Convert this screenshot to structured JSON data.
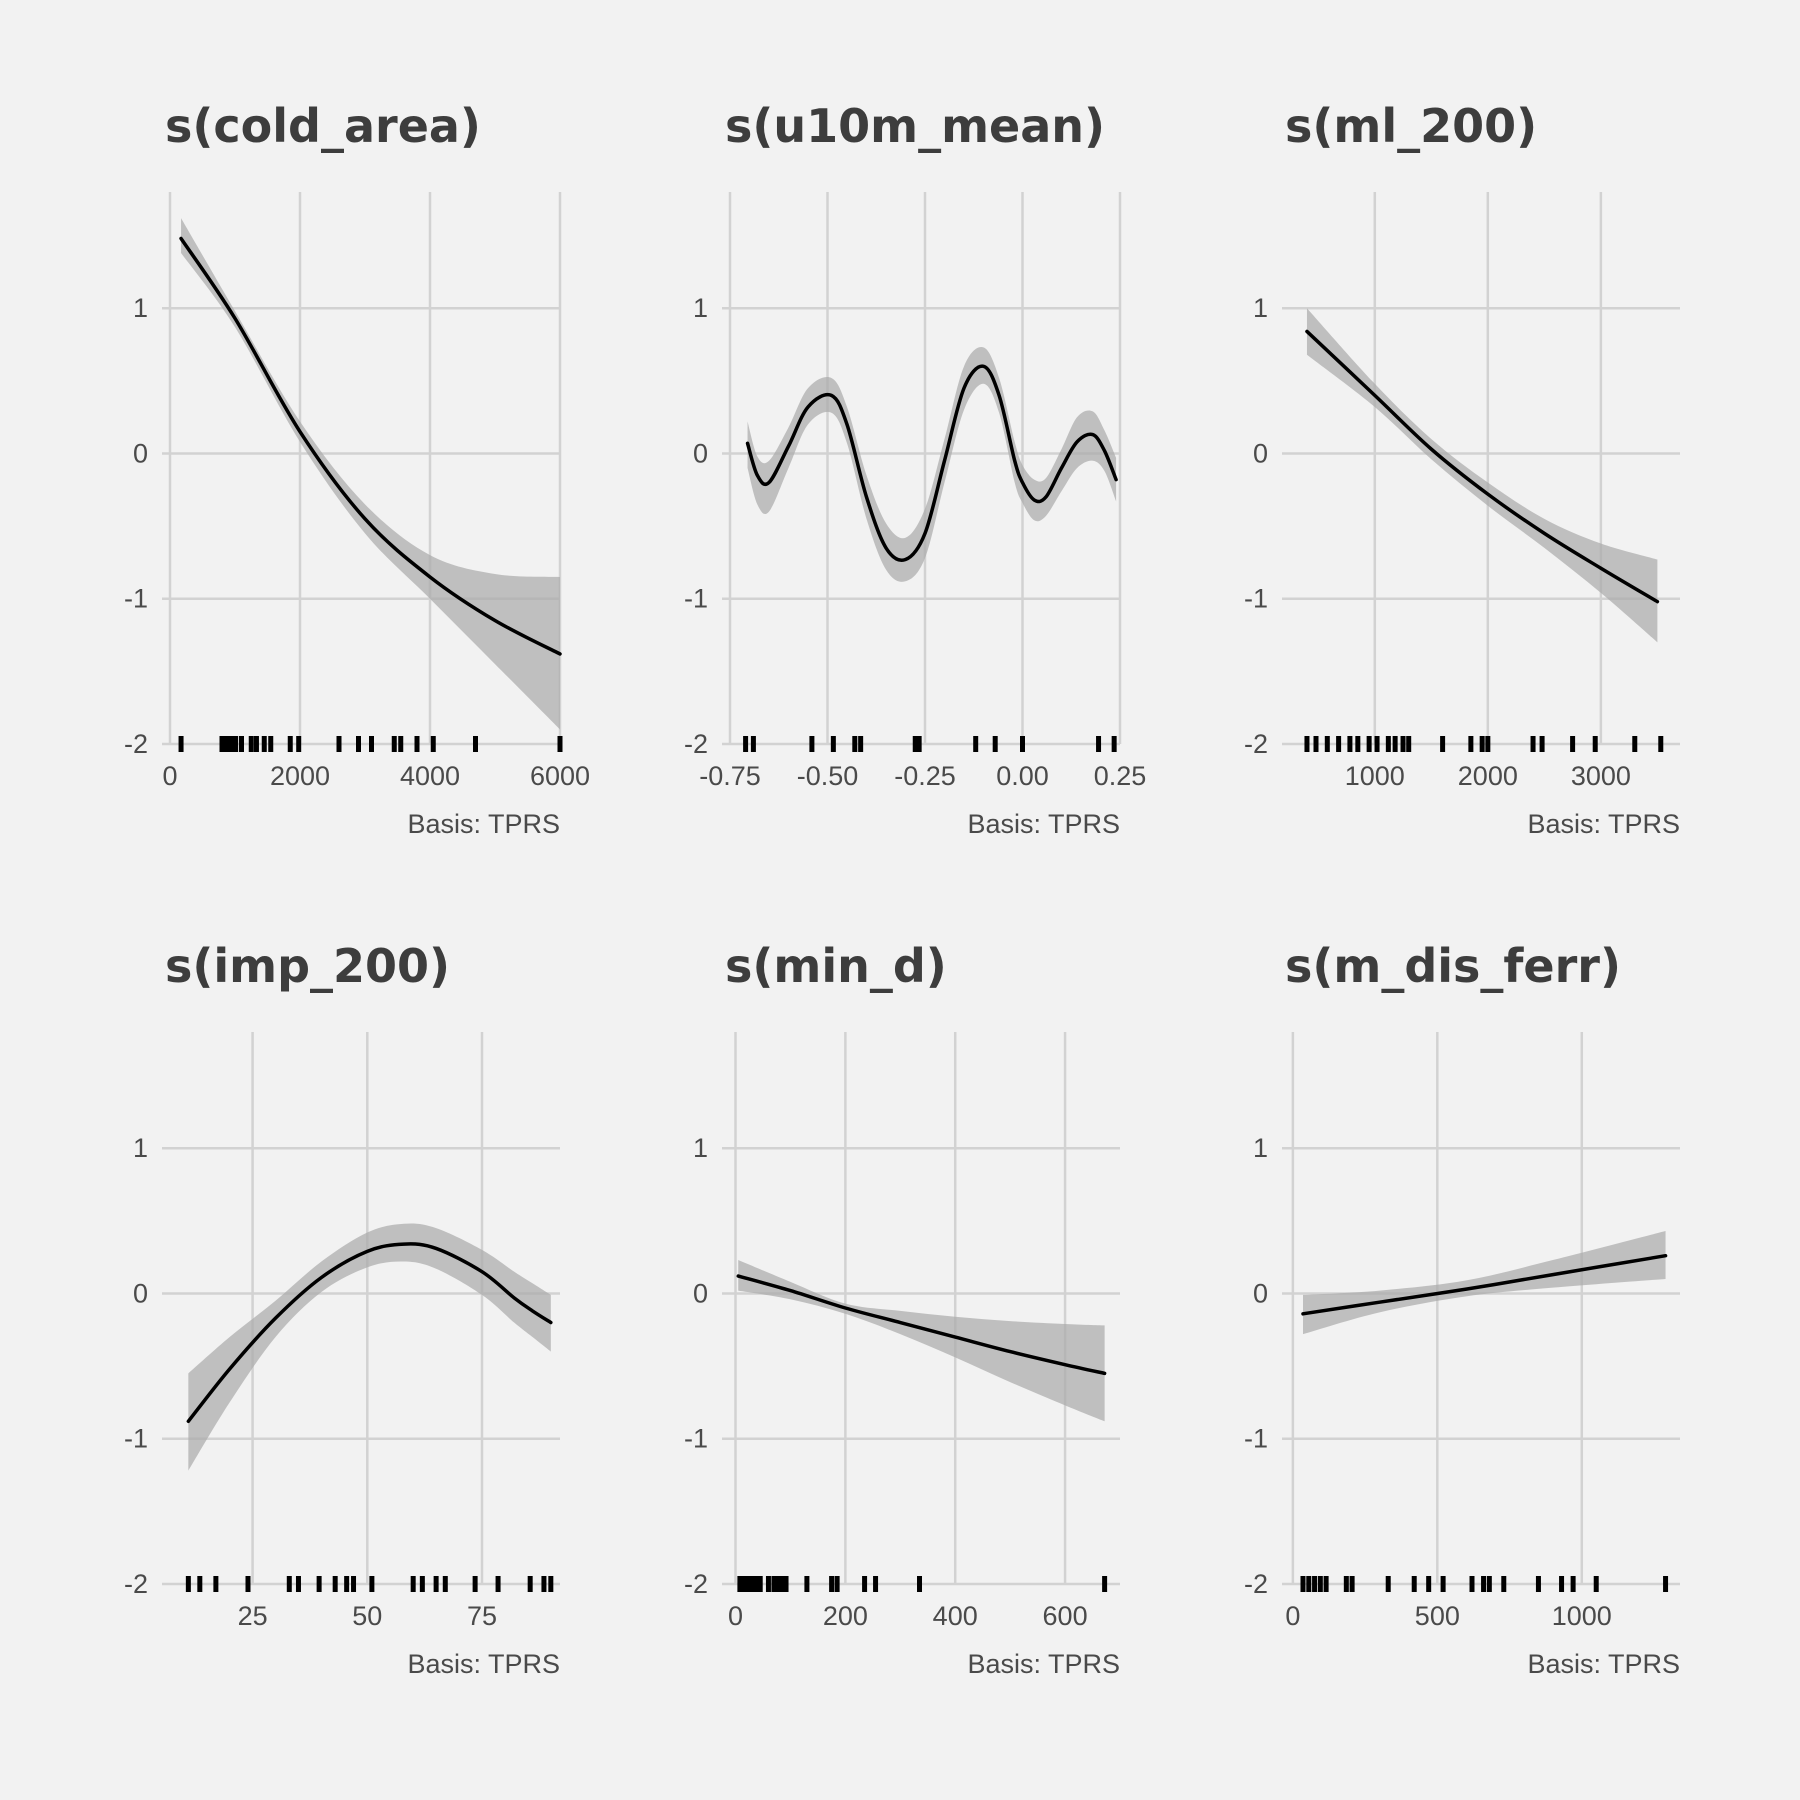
{
  "chart_data": [
    {
      "type": "line",
      "title": "s(cold_area)",
      "caption": "Basis: TPRS",
      "xlim": [
        0,
        6000
      ],
      "ylim": [
        -2,
        1.8
      ],
      "xticks": [
        0,
        2000,
        4000,
        6000
      ],
      "xtick_labels": [
        "0",
        "2000",
        "4000",
        "6000"
      ],
      "yticks": [
        -2,
        -1,
        0,
        1
      ],
      "ytick_labels": [
        "-2",
        "-1",
        "0",
        "1"
      ],
      "grid": true,
      "fit": {
        "x": [
          170,
          1000,
          2000,
          3000,
          4000,
          5000,
          6000
        ],
        "y": [
          1.48,
          0.93,
          0.15,
          -0.45,
          -0.85,
          -1.15,
          -1.38
        ]
      },
      "ci_upper": {
        "x": [
          170,
          1000,
          2000,
          3000,
          4000,
          5000,
          6000
        ],
        "y": [
          1.62,
          0.98,
          0.22,
          -0.35,
          -0.7,
          -0.83,
          -0.85
        ]
      },
      "ci_lower": {
        "x": [
          170,
          1000,
          2000,
          3000,
          4000,
          5000,
          6000
        ],
        "y": [
          1.38,
          0.87,
          0.08,
          -0.55,
          -1.0,
          -1.45,
          -1.9
        ]
      },
      "rug": [
        170,
        800,
        870,
        940,
        1010,
        1100,
        1250,
        1330,
        1450,
        1550,
        1850,
        1980,
        2600,
        2900,
        3100,
        3450,
        3550,
        3800,
        4050,
        4700,
        6000
      ]
    },
    {
      "type": "line",
      "title": "s(u10m_mean)",
      "caption": "Basis: TPRS",
      "xlim": [
        -0.75,
        0.25
      ],
      "ylim": [
        -2,
        1.8
      ],
      "xticks": [
        -0.75,
        -0.5,
        -0.25,
        0,
        0.25
      ],
      "xtick_labels": [
        "-0.75",
        "-0.50",
        "-0.25",
        "0.00",
        "0.25"
      ],
      "yticks": [
        -2,
        -1,
        0,
        1
      ],
      "ytick_labels": [
        "-2",
        "-1",
        "0",
        "1"
      ],
      "grid": true,
      "fit": {
        "x": [
          -0.705,
          -0.68,
          -0.65,
          -0.6,
          -0.55,
          -0.49,
          -0.45,
          -0.4,
          -0.35,
          -0.3,
          -0.25,
          -0.2,
          -0.15,
          -0.1,
          -0.06,
          -0.02,
          0.0,
          0.03,
          0.06,
          0.1,
          0.14,
          0.18,
          0.21,
          0.24
        ],
        "y": [
          0.07,
          -0.15,
          -0.2,
          0.05,
          0.32,
          0.4,
          0.2,
          -0.3,
          -0.65,
          -0.73,
          -0.55,
          -0.05,
          0.45,
          0.6,
          0.4,
          -0.05,
          -0.2,
          -0.32,
          -0.3,
          -0.1,
          0.08,
          0.13,
          0.02,
          -0.18
        ]
      },
      "ci_upper": {
        "x": [
          -0.705,
          -0.68,
          -0.65,
          -0.6,
          -0.55,
          -0.49,
          -0.45,
          -0.4,
          -0.35,
          -0.3,
          -0.25,
          -0.2,
          -0.15,
          -0.1,
          -0.06,
          -0.02,
          0.0,
          0.03,
          0.06,
          0.1,
          0.14,
          0.18,
          0.21,
          0.24
        ],
        "y": [
          0.22,
          -0.02,
          -0.05,
          0.18,
          0.45,
          0.52,
          0.32,
          -0.15,
          -0.48,
          -0.58,
          -0.38,
          0.1,
          0.6,
          0.73,
          0.52,
          0.08,
          -0.08,
          -0.18,
          -0.17,
          0.03,
          0.25,
          0.29,
          0.16,
          -0.03
        ]
      },
      "ci_lower": {
        "x": [
          -0.705,
          -0.68,
          -0.65,
          -0.6,
          -0.55,
          -0.49,
          -0.45,
          -0.4,
          -0.35,
          -0.3,
          -0.25,
          -0.2,
          -0.15,
          -0.1,
          -0.06,
          -0.02,
          0.0,
          0.03,
          0.06,
          0.1,
          0.14,
          0.18,
          0.21,
          0.24
        ],
        "y": [
          -0.1,
          -0.35,
          -0.4,
          -0.1,
          0.2,
          0.28,
          0.07,
          -0.45,
          -0.8,
          -0.88,
          -0.72,
          -0.2,
          0.3,
          0.48,
          0.28,
          -0.2,
          -0.34,
          -0.46,
          -0.43,
          -0.26,
          -0.1,
          -0.05,
          -0.12,
          -0.33
        ]
      },
      "rug": [
        -0.71,
        -0.69,
        -0.54,
        -0.485,
        -0.43,
        -0.415,
        -0.275,
        -0.265,
        -0.12,
        -0.07,
        0.0,
        0.195,
        0.235
      ]
    },
    {
      "type": "line",
      "title": "s(ml_200)",
      "caption": "Basis: TPRS",
      "xlim": [
        250,
        3700
      ],
      "ylim": [
        -2,
        1.8
      ],
      "xticks": [
        1000,
        2000,
        3000
      ],
      "xtick_labels": [
        "1000",
        "2000",
        "3000"
      ],
      "yticks": [
        -2,
        -1,
        0,
        1
      ],
      "ytick_labels": [
        "-2",
        "-1",
        "0",
        "1"
      ],
      "grid": true,
      "fit": {
        "x": [
          400,
          1000,
          1500,
          2000,
          2500,
          3000,
          3500
        ],
        "y": [
          0.84,
          0.4,
          0.03,
          -0.28,
          -0.55,
          -0.79,
          -1.02
        ]
      },
      "ci_upper": {
        "x": [
          400,
          1000,
          1500,
          2000,
          2500,
          3000,
          3500
        ],
        "y": [
          1.0,
          0.48,
          0.1,
          -0.2,
          -0.45,
          -0.62,
          -0.73
        ]
      },
      "ci_lower": {
        "x": [
          400,
          1000,
          1500,
          2000,
          2500,
          3000,
          3500
        ],
        "y": [
          0.68,
          0.32,
          -0.04,
          -0.36,
          -0.65,
          -0.96,
          -1.3
        ]
      },
      "rug": [
        400,
        480,
        580,
        680,
        780,
        850,
        950,
        1020,
        1120,
        1180,
        1250,
        1300,
        1600,
        1850,
        1950,
        2000,
        2400,
        2480,
        2750,
        2950,
        3300,
        3530
      ]
    },
    {
      "type": "line",
      "title": "s(imp_200)",
      "caption": "Basis: TPRS",
      "xlim": [
        7,
        92
      ],
      "ylim": [
        -2,
        1.8
      ],
      "xticks": [
        25,
        50,
        75
      ],
      "xtick_labels": [
        "25",
        "50",
        "75"
      ],
      "yticks": [
        -2,
        -1,
        0,
        1
      ],
      "ytick_labels": [
        "-2",
        "-1",
        "0",
        "1"
      ],
      "grid": true,
      "fit": {
        "x": [
          11,
          20,
          30,
          40,
          50,
          58,
          65,
          75,
          82,
          86,
          90
        ],
        "y": [
          -0.88,
          -0.52,
          -0.17,
          0.11,
          0.29,
          0.34,
          0.31,
          0.15,
          -0.03,
          -0.12,
          -0.2
        ]
      },
      "ci_upper": {
        "x": [
          11,
          20,
          30,
          40,
          50,
          58,
          65,
          75,
          82,
          86,
          90
        ],
        "y": [
          -0.55,
          -0.3,
          -0.05,
          0.22,
          0.42,
          0.48,
          0.45,
          0.3,
          0.15,
          0.07,
          -0.01
        ]
      },
      "ci_lower": {
        "x": [
          11,
          20,
          30,
          40,
          50,
          58,
          65,
          75,
          82,
          86,
          90
        ],
        "y": [
          -1.22,
          -0.75,
          -0.3,
          0.01,
          0.18,
          0.22,
          0.17,
          -0.01,
          -0.2,
          -0.3,
          -0.4
        ]
      },
      "rug": [
        11,
        13.5,
        17,
        24,
        33,
        35,
        39.5,
        43,
        45.5,
        47,
        51,
        60,
        62,
        65,
        67,
        73.5,
        78.5,
        85.5,
        88.5,
        90
      ]
    },
    {
      "type": "line",
      "title": "s(min_d)",
      "caption": "Basis: TPRS",
      "xlim": [
        -10,
        700
      ],
      "ylim": [
        -2,
        1.8
      ],
      "xticks": [
        0,
        200,
        400,
        600
      ],
      "xtick_labels": [
        "0",
        "200",
        "400",
        "600"
      ],
      "yticks": [
        -2,
        -1,
        0,
        1
      ],
      "ytick_labels": [
        "-2",
        "-1",
        "0",
        "1"
      ],
      "grid": true,
      "fit": {
        "x": [
          5,
          100,
          200,
          300,
          400,
          500,
          600,
          672
        ],
        "y": [
          0.12,
          0.02,
          -0.1,
          -0.2,
          -0.3,
          -0.4,
          -0.49,
          -0.55
        ]
      },
      "ci_upper": {
        "x": [
          5,
          100,
          200,
          300,
          400,
          500,
          600,
          672
        ],
        "y": [
          0.23,
          0.08,
          -0.07,
          -0.12,
          -0.16,
          -0.19,
          -0.21,
          -0.22
        ]
      },
      "ci_lower": {
        "x": [
          5,
          100,
          200,
          300,
          400,
          500,
          600,
          672
        ],
        "y": [
          0.02,
          -0.04,
          -0.14,
          -0.28,
          -0.44,
          -0.61,
          -0.77,
          -0.88
        ]
      },
      "rug": [
        8,
        15,
        22,
        30,
        38,
        45,
        60,
        70,
        78,
        85,
        92,
        130,
        175,
        185,
        235,
        255,
        335,
        672
      ]
    },
    {
      "type": "line",
      "title": "s(m_dis_ferr)",
      "caption": "Basis: TPRS",
      "xlim": [
        -10,
        1340
      ],
      "ylim": [
        -2,
        1.8
      ],
      "xticks": [
        0,
        500,
        1000
      ],
      "xtick_labels": [
        "0",
        "500",
        "1000"
      ],
      "yticks": [
        -2,
        -1,
        0,
        1
      ],
      "ytick_labels": [
        "-2",
        "-1",
        "0",
        "1"
      ],
      "grid": true,
      "fit": {
        "x": [
          35,
          300,
          600,
          900,
          1290
        ],
        "y": [
          -0.14,
          -0.06,
          0.03,
          0.13,
          0.26
        ]
      },
      "ci_upper": {
        "x": [
          35,
          300,
          600,
          900,
          1290
        ],
        "y": [
          -0.01,
          0.02,
          0.09,
          0.23,
          0.43
        ]
      },
      "ci_lower": {
        "x": [
          35,
          300,
          600,
          900,
          1290
        ],
        "y": [
          -0.28,
          -0.13,
          -0.02,
          0.04,
          0.1
        ]
      },
      "rug": [
        35,
        55,
        75,
        95,
        115,
        185,
        205,
        330,
        420,
        470,
        520,
        620,
        660,
        680,
        730,
        850,
        930,
        970,
        1050,
        1290
      ]
    }
  ]
}
